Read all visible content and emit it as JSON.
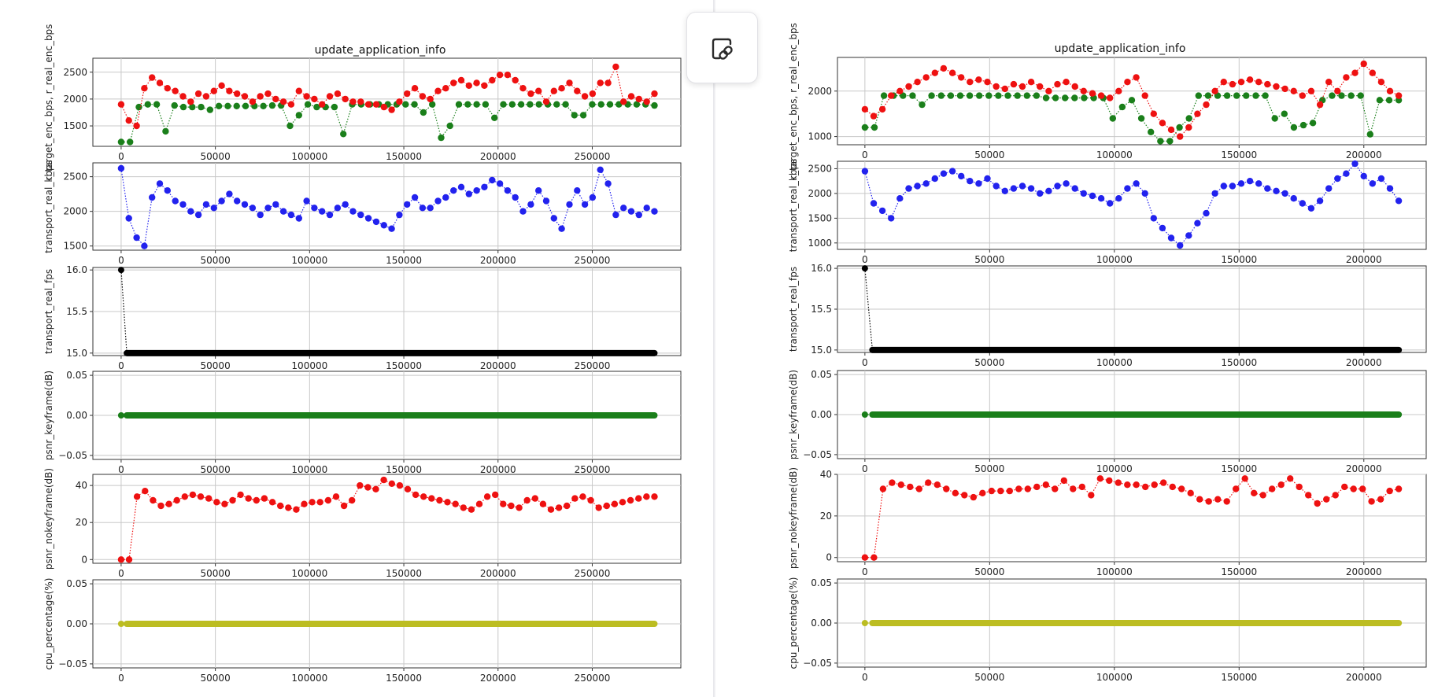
{
  "link_button": {
    "icon": "link-icon"
  },
  "chart_data": [
    {
      "type": "scatter",
      "title": "update_application_info",
      "xlabel": "",
      "x_ticks": [
        0,
        50000,
        100000,
        150000,
        200000,
        250000
      ],
      "xlim": [
        -15000,
        297000
      ],
      "x_max": 283000,
      "panels": [
        {
          "name": "encode-rate",
          "ylabel": "r_target_enc_bps, r_real_enc_bps",
          "ylabel_color": "#2ca02c",
          "ylim": [
            1120,
            2760
          ],
          "y_ticks": [
            1500,
            2000,
            2500
          ],
          "series": [
            {
              "name": "target_enc_bps",
              "color": "#1a7f1a",
              "values": [
                1200,
                1200,
                1850,
                1900,
                1900,
                1400,
                1880,
                1850,
                1850,
                1850,
                1800,
                1870,
                1870,
                1870,
                1870,
                1870,
                1870,
                1880,
                1880,
                1500,
                1700,
                1900,
                1850,
                1850,
                1850,
                1350,
                1900,
                1900,
                1900,
                1900,
                1900,
                1900,
                1900,
                1900,
                1750,
                1900,
                1280,
                1500,
                1900,
                1900,
                1900,
                1900,
                1650,
                1900,
                1900,
                1900,
                1900,
                1900,
                1900,
                1900,
                1900,
                1700,
                1700,
                1900,
                1900,
                1900,
                1900,
                1900,
                1900,
                1900,
                1880
              ]
            },
            {
              "name": "real_enc_bps",
              "color": "#ee1111",
              "values": [
                1900,
                1600,
                1500,
                2200,
                2400,
                2300,
                2200,
                2150,
                2050,
                1950,
                2100,
                2050,
                2150,
                2250,
                2150,
                2100,
                2050,
                1950,
                2050,
                2100,
                2000,
                1950,
                1900,
                2150,
                2050,
                2000,
                1900,
                2050,
                2100,
                2000,
                1950,
                1950,
                1900,
                1900,
                1850,
                1800,
                1950,
                2100,
                2200,
                2050,
                2000,
                2150,
                2200,
                2300,
                2350,
                2250,
                2300,
                2250,
                2350,
                2450,
                2450,
                2350,
                2200,
                2100,
                2150,
                1950,
                2150,
                2200,
                2300,
                2150,
                2050,
                2100,
                2300,
                2300,
                2600,
                1950,
                2050,
                2000,
                1950,
                2100
              ]
            }
          ]
        },
        {
          "name": "transport-rate",
          "ylabel": "transport_real_kbps",
          "ylabel_color": "#222222",
          "ylim": [
            1440,
            2700
          ],
          "y_ticks": [
            1500,
            2000,
            2500
          ],
          "series": [
            {
              "name": "transport_real_kbps",
              "color": "#2222ee",
              "values": [
                2620,
                1900,
                1620,
                1500,
                2200,
                2400,
                2300,
                2150,
                2100,
                2000,
                1950,
                2100,
                2050,
                2150,
                2250,
                2150,
                2100,
                2050,
                1950,
                2050,
                2100,
                2000,
                1950,
                1900,
                2150,
                2050,
                2000,
                1950,
                2050,
                2100,
                2000,
                1950,
                1900,
                1850,
                1800,
                1750,
                1950,
                2100,
                2200,
                2050,
                2050,
                2150,
                2200,
                2300,
                2350,
                2250,
                2300,
                2350,
                2450,
                2400,
                2300,
                2200,
                2000,
                2100,
                2300,
                2150,
                1900,
                1750,
                2100,
                2300,
                2100,
                2200,
                2600,
                2400,
                1950,
                2050,
                2000,
                1950,
                2050,
                2000
              ]
            }
          ]
        },
        {
          "name": "fps",
          "ylabel": "transport_real_fps",
          "ylabel_color": "#222222",
          "ylim": [
            14.97,
            16.03
          ],
          "y_ticks": [
            15.0,
            15.5,
            16.0
          ],
          "y_tick_labels": [
            "15.0",
            "15.5",
            "16.0"
          ],
          "series": [
            {
              "name": "transport_real_fps",
              "color": "#000000",
              "values": [
                16.0,
                15.0
              ]
            }
          ]
        },
        {
          "name": "psnr-keyframe",
          "ylabel": "psnr_keyframe(dB)",
          "ylabel_color": "#222222",
          "ylim": [
            -0.055,
            0.055
          ],
          "y_ticks": [
            -0.05,
            0.0,
            0.05
          ],
          "y_tick_labels": [
            "−0.05",
            "0.00",
            "0.05"
          ],
          "series": [
            {
              "name": "psnr_keyframe",
              "color": "#1a7f1a",
              "values": [
                0,
                0
              ]
            }
          ]
        },
        {
          "name": "psnr-nokeyframe",
          "ylabel": "psnr_nokeyframe(dB)",
          "ylabel_color": "#222222",
          "ylim": [
            -2,
            46
          ],
          "y_ticks": [
            0,
            20,
            40
          ],
          "series": [
            {
              "name": "psnr_nokeyframe",
              "color": "#ee1111",
              "values": [
                0,
                0,
                34,
                37,
                32,
                29,
                30,
                32,
                34,
                35,
                34,
                33,
                31,
                30,
                32,
                35,
                33,
                32,
                33,
                31,
                29,
                28,
                27,
                30,
                31,
                31,
                32,
                34,
                29,
                32,
                40,
                39,
                38,
                43,
                41,
                40,
                38,
                35,
                34,
                33,
                32,
                31,
                30,
                28,
                27,
                30,
                34,
                35,
                30,
                29,
                28,
                32,
                33,
                30,
                27,
                28,
                29,
                33,
                34,
                32,
                28,
                29,
                30,
                31,
                32,
                33,
                34,
                34
              ]
            }
          ]
        },
        {
          "name": "cpu",
          "ylabel": "cpu_percentage(%)",
          "ylabel_color": "#222222",
          "ylim": [
            -0.055,
            0.055
          ],
          "y_ticks": [
            -0.05,
            0.0,
            0.05
          ],
          "y_tick_labels": [
            "−0.05",
            "0.00",
            "0.05"
          ],
          "series": [
            {
              "name": "cpu_percentage",
              "color": "#bcbd22",
              "values": [
                0,
                0
              ]
            }
          ]
        }
      ]
    },
    {
      "type": "scatter",
      "title": "update_application_info",
      "xlabel": "",
      "x_ticks": [
        0,
        50000,
        100000,
        150000,
        200000
      ],
      "xlim": [
        -11000,
        225000
      ],
      "x_max": 214000,
      "panels": [
        {
          "name": "encode-rate",
          "ylabel": "r_target_enc_bps, r_real_enc_bps",
          "ylabel_color": "#2ca02c",
          "ylim": [
            820,
            2740
          ],
          "y_ticks": [
            1000,
            2000
          ],
          "series": [
            {
              "name": "target_enc_bps",
              "color": "#1a7f1a",
              "values": [
                1200,
                1200,
                1900,
                1900,
                1900,
                1900,
                1700,
                1900,
                1900,
                1900,
                1900,
                1900,
                1900,
                1900,
                1900,
                1900,
                1900,
                1900,
                1900,
                1850,
                1850,
                1850,
                1850,
                1850,
                1850,
                1850,
                1400,
                1650,
                1800,
                1400,
                1100,
                900,
                900,
                1200,
                1400,
                1900,
                1900,
                1900,
                1900,
                1900,
                1900,
                1900,
                1900,
                1400,
                1500,
                1200,
                1250,
                1300,
                1800,
                1900,
                1900,
                1900,
                1900,
                1050,
                1800,
                1800,
                1800
              ]
            },
            {
              "name": "real_enc_bps",
              "color": "#ee1111",
              "values": [
                1600,
                1450,
                1600,
                1900,
                2000,
                2100,
                2200,
                2300,
                2400,
                2500,
                2400,
                2300,
                2200,
                2250,
                2200,
                2100,
                2050,
                2150,
                2100,
                2200,
                2100,
                2000,
                2150,
                2200,
                2100,
                2000,
                1950,
                1900,
                1850,
                2000,
                2200,
                2300,
                1900,
                1500,
                1300,
                1150,
                1000,
                1200,
                1500,
                1700,
                2000,
                2200,
                2150,
                2200,
                2250,
                2200,
                2150,
                2100,
                2050,
                2000,
                1900,
                2000,
                1700,
                2200,
                2000,
                2300,
                2400,
                2600,
                2400,
                2200,
                2000,
                1900
              ]
            }
          ]
        },
        {
          "name": "transport-rate",
          "ylabel": "transport_real_kbps",
          "ylabel_color": "#222222",
          "ylim": [
            870,
            2650
          ],
          "y_ticks": [
            1000,
            1500,
            2000,
            2500
          ],
          "series": [
            {
              "name": "transport_real_kbps",
              "color": "#2222ee",
              "values": [
                2450,
                1800,
                1650,
                1500,
                1900,
                2100,
                2150,
                2200,
                2300,
                2400,
                2450,
                2350,
                2250,
                2200,
                2300,
                2150,
                2050,
                2100,
                2150,
                2100,
                2000,
                2050,
                2150,
                2200,
                2100,
                2000,
                1950,
                1900,
                1800,
                1900,
                2100,
                2200,
                2000,
                1500,
                1300,
                1100,
                950,
                1150,
                1400,
                1600,
                2000,
                2150,
                2150,
                2200,
                2250,
                2200,
                2100,
                2050,
                2000,
                1900,
                1800,
                1700,
                1850,
                2100,
                2300,
                2400,
                2600,
                2350,
                2200,
                2300,
                2100,
                1850
              ]
            }
          ]
        },
        {
          "name": "fps",
          "ylabel": "transport_real_fps",
          "ylabel_color": "#222222",
          "ylim": [
            14.97,
            16.03
          ],
          "y_ticks": [
            15.0,
            15.5,
            16.0
          ],
          "y_tick_labels": [
            "15.0",
            "15.5",
            "16.0"
          ],
          "series": [
            {
              "name": "transport_real_fps",
              "color": "#000000",
              "values": [
                16.0,
                15.0
              ]
            }
          ]
        },
        {
          "name": "psnr-keyframe",
          "ylabel": "psnr_keyframe(dB)",
          "ylabel_color": "#222222",
          "ylim": [
            -0.055,
            0.055
          ],
          "y_ticks": [
            -0.05,
            0.0,
            0.05
          ],
          "y_tick_labels": [
            "−0.05",
            "0.00",
            "0.05"
          ],
          "series": [
            {
              "name": "psnr_keyframe",
              "color": "#1a7f1a",
              "values": [
                0,
                0
              ]
            }
          ]
        },
        {
          "name": "psnr-nokeyframe",
          "ylabel": "psnr_nokeyframe(dB)",
          "ylabel_color": "#222222",
          "ylim": [
            -2,
            40
          ],
          "y_ticks": [
            0,
            20,
            40
          ],
          "series": [
            {
              "name": "psnr_nokeyframe",
              "color": "#ee1111",
              "values": [
                0,
                0,
                33,
                36,
                35,
                34,
                33,
                36,
                35,
                33,
                31,
                30,
                29,
                31,
                32,
                32,
                32,
                33,
                33,
                34,
                35,
                33,
                37,
                33,
                34,
                30,
                38,
                37,
                36,
                35,
                35,
                34,
                35,
                36,
                34,
                33,
                31,
                28,
                27,
                28,
                27,
                33,
                38,
                31,
                30,
                33,
                35,
                38,
                34,
                30,
                26,
                28,
                30,
                34,
                33,
                33,
                27,
                28,
                32,
                33
              ]
            }
          ]
        },
        {
          "name": "cpu",
          "ylabel": "cpu_percentage(%)",
          "ylabel_color": "#222222",
          "ylim": [
            -0.055,
            0.055
          ],
          "y_ticks": [
            -0.05,
            0.0,
            0.05
          ],
          "y_tick_labels": [
            "−0.05",
            "0.00",
            "0.05"
          ],
          "series": [
            {
              "name": "cpu_percentage",
              "color": "#bcbd22",
              "values": [
                0,
                0
              ]
            }
          ]
        }
      ]
    }
  ]
}
